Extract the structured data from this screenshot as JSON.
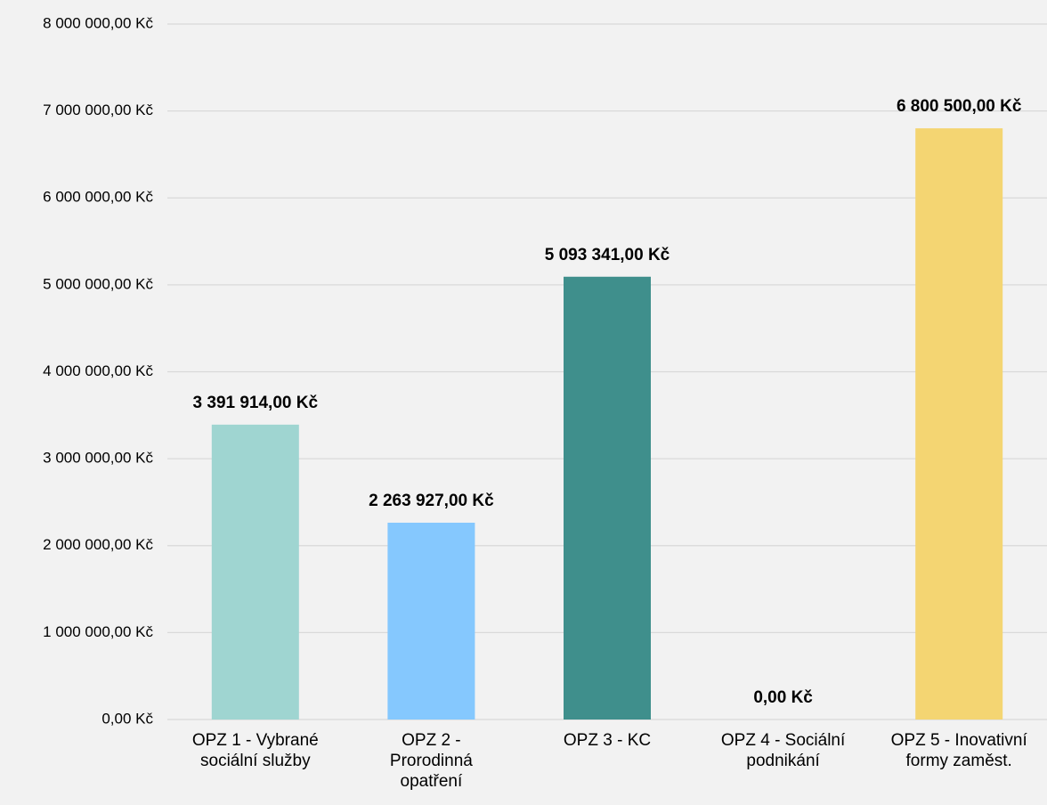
{
  "chart_data": {
    "type": "bar",
    "categories": [
      "OPZ 1 - Vybrané\nsociální služby",
      "OPZ 2 -\nProrodinná\nopatření",
      "OPZ 3 - KC",
      "OPZ 4 - Sociální\npodnikání",
      "OPZ 5 - Inovativní\nformy zaměst."
    ],
    "values": [
      3391914,
      2263927,
      5093341,
      0,
      6800500
    ],
    "value_labels": [
      "3 391 914,00 Kč",
      "2 263 927,00 Kč",
      "5 093 341,00 Kč",
      "0,00 Kč",
      "6 800 500,00 Kč"
    ],
    "colors": [
      "#9fd5d1",
      "#85c8fe",
      "#3f8f8c",
      "#b0b0b0",
      "#f4d572"
    ],
    "ylim": [
      0,
      8000000
    ],
    "yticks": [
      {
        "value": 0,
        "label": "0,00 Kč"
      },
      {
        "value": 1000000,
        "label": "1 000 000,00 Kč"
      },
      {
        "value": 2000000,
        "label": "2 000 000,00 Kč"
      },
      {
        "value": 3000000,
        "label": "3 000 000,00 Kč"
      },
      {
        "value": 4000000,
        "label": "4 000 000,00 Kč"
      },
      {
        "value": 5000000,
        "label": "5 000 000,00 Kč"
      },
      {
        "value": 6000000,
        "label": "6 000 000,00 Kč"
      },
      {
        "value": 7000000,
        "label": "7 000 000,00 Kč"
      },
      {
        "value": 8000000,
        "label": "8 000 000,00 Kč"
      }
    ],
    "grid": true
  }
}
